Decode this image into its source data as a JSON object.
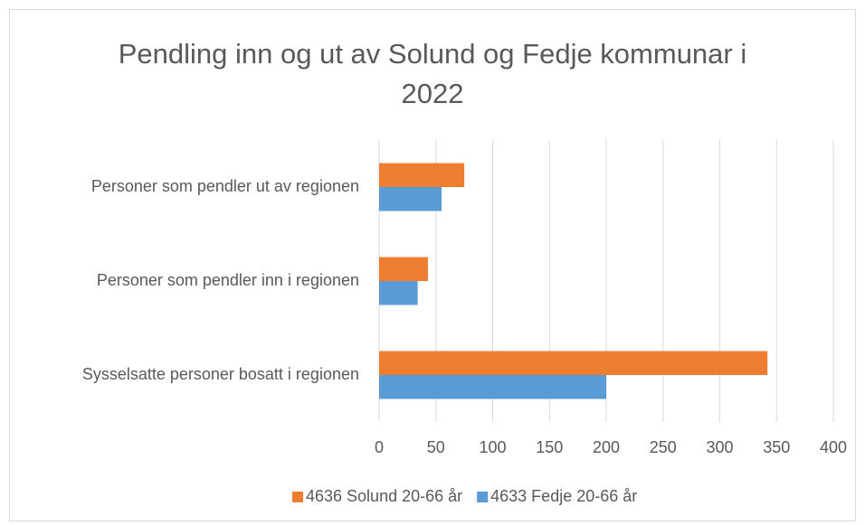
{
  "chart_data": {
    "type": "hbar",
    "title": "Pendling inn og ut av Solund og Fedje kommunar i 2022",
    "categories": [
      "Personer som pendler ut av regionen",
      "Personer som pendler inn i regionen",
      "Sysselsatte personer bosatt i regionen"
    ],
    "series": [
      {
        "name": "4636 Solund 20-66 år",
        "color": "#ed7d31",
        "values": [
          75,
          43,
          342
        ]
      },
      {
        "name": "4633 Fedje 20-66 år",
        "color": "#5b9bd5",
        "values": [
          55,
          34,
          200
        ]
      }
    ],
    "xlim": [
      0,
      400
    ],
    "xticks": [
      0,
      50,
      100,
      150,
      200,
      250,
      300,
      350,
      400
    ],
    "grid": true,
    "legend": "bottom"
  }
}
